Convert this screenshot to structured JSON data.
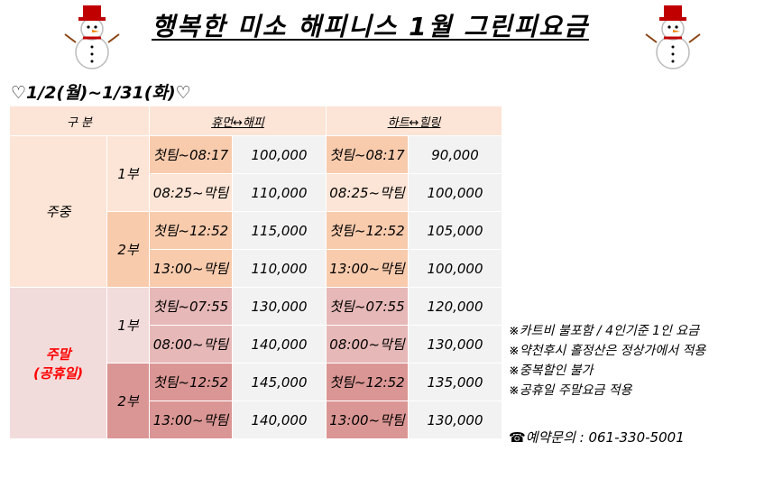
{
  "title": "행복한 미소 해피니스 1월 그린피요금",
  "period": "♡1/2(월)~1/31(화)♡",
  "table": {
    "header": {
      "division": "구 분",
      "course_a": "휴먼↔해피",
      "course_b": "하트↔힐링"
    },
    "weekday": {
      "label": "주중",
      "parts": [
        {
          "label": "1부",
          "rows": [
            {
              "time_a": "첫팀~08:17",
              "price_a": "100,000",
              "time_b": "첫팀~08:17",
              "price_b": "90,000"
            },
            {
              "time_a": "08:25~막팀",
              "price_a": "110,000",
              "time_b": "08:25~막팀",
              "price_b": "100,000"
            }
          ]
        },
        {
          "label": "2부",
          "rows": [
            {
              "time_a": "첫팀~12:52",
              "price_a": "115,000",
              "time_b": "첫팀~12:52",
              "price_b": "105,000"
            },
            {
              "time_a": "13:00~막팀",
              "price_a": "110,000",
              "time_b": "13:00~막팀",
              "price_b": "100,000"
            }
          ]
        }
      ]
    },
    "weekend": {
      "label": "주말",
      "sublabel": "(공휴일)",
      "parts": [
        {
          "label": "1부",
          "rows": [
            {
              "time_a": "첫팀~07:55",
              "price_a": "130,000",
              "time_b": "첫팀~07:55",
              "price_b": "120,000"
            },
            {
              "time_a": "08:00~막팀",
              "price_a": "140,000",
              "time_b": "08:00~막팀",
              "price_b": "130,000"
            }
          ]
        },
        {
          "label": "2부",
          "rows": [
            {
              "time_a": "첫팀~12:52",
              "price_a": "145,000",
              "time_b": "첫팀~12:52",
              "price_b": "135,000"
            },
            {
              "time_a": "13:00~막팀",
              "price_a": "140,000",
              "time_b": "13:00~막팀",
              "price_b": "130,000"
            }
          ]
        }
      ]
    }
  },
  "notes": [
    "※카트비 불포함 / 4인기준 1인 요금",
    "※약천후시 홀정산은 정상가에서 적용",
    "※중복할인 불가",
    "※공휴일 주말요금 적용"
  ],
  "phone": "☎예약문의 : 061-330-5001",
  "icons": {
    "decoration": "snowman-icon"
  },
  "colors": {
    "weekday_light": "#fce4d6",
    "weekday_medium": "#f8cbad",
    "weekend_light": "#f2dcdb",
    "weekend_medium": "#e6b8b7",
    "weekend_dark": "#da9694",
    "price_cell": "#f2f2f2",
    "weekend_label": "#ff0000"
  }
}
